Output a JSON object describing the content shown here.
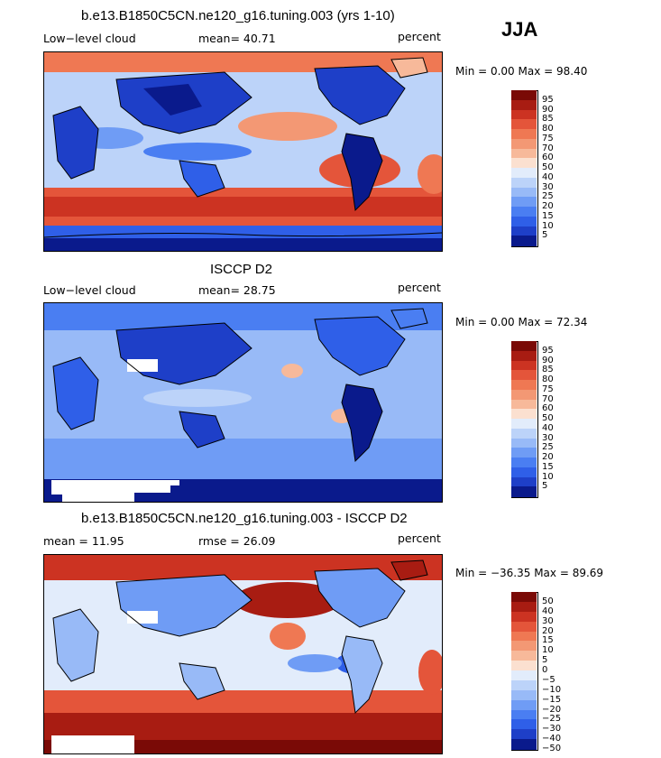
{
  "season": "JJA",
  "palette_abs": [
    "#0a1a8c",
    "#1e3fc8",
    "#2f5fe8",
    "#4a7ef2",
    "#6f9cf5",
    "#98baf7",
    "#bcd3f9",
    "#e2ecfb",
    "#fbe0d0",
    "#f7b99a",
    "#f39874",
    "#ef7853",
    "#e4553a",
    "#cc3322",
    "#a81c12",
    "#7a0a06"
  ],
  "palette_diff": [
    "#0a1a8c",
    "#1e3fc8",
    "#2f5fe8",
    "#4a7ef2",
    "#6f9cf5",
    "#98baf7",
    "#bcd3f9",
    "#e2ecfb",
    "#fbe0d0",
    "#f7b99a",
    "#f39874",
    "#ef7853",
    "#e4553a",
    "#cc3322",
    "#a81c12",
    "#7a0a06"
  ],
  "panels": [
    {
      "title": "b.e13.B1850C5CN.ne120_g16.tuning.003 (yrs 1-10)",
      "left_label": "Low−level cloud",
      "mid_label": "mean=  40.71",
      "right_label": "percent",
      "minmax": "Min =    0.00 Max =   98.40",
      "ticks": [
        "95",
        "90",
        "85",
        "80",
        "75",
        "70",
        "60",
        "50",
        "40",
        "30",
        "25",
        "20",
        "15",
        "10",
        "5"
      ]
    },
    {
      "title": "ISCCP D2",
      "left_label": "Low−level cloud",
      "mid_label": "mean=  28.75",
      "right_label": "percent",
      "minmax": "Min =    0.00 Max =   72.34",
      "ticks": [
        "95",
        "90",
        "85",
        "80",
        "75",
        "70",
        "60",
        "50",
        "40",
        "30",
        "25",
        "20",
        "15",
        "10",
        "5"
      ]
    },
    {
      "title": "b.e13.B1850C5CN.ne120_g16.tuning.003 - ISCCP D2",
      "left_label": "mean =  11.95",
      "mid_label": "rmse =  26.09",
      "right_label": "percent",
      "minmax": "Min = −36.35 Max =  89.69",
      "ticks": [
        "50",
        "40",
        "30",
        "20",
        "15",
        "10",
        "5",
        "0",
        "−5",
        "−10",
        "−15",
        "−20",
        "−25",
        "−30",
        "−40",
        "−50"
      ]
    }
  ]
}
